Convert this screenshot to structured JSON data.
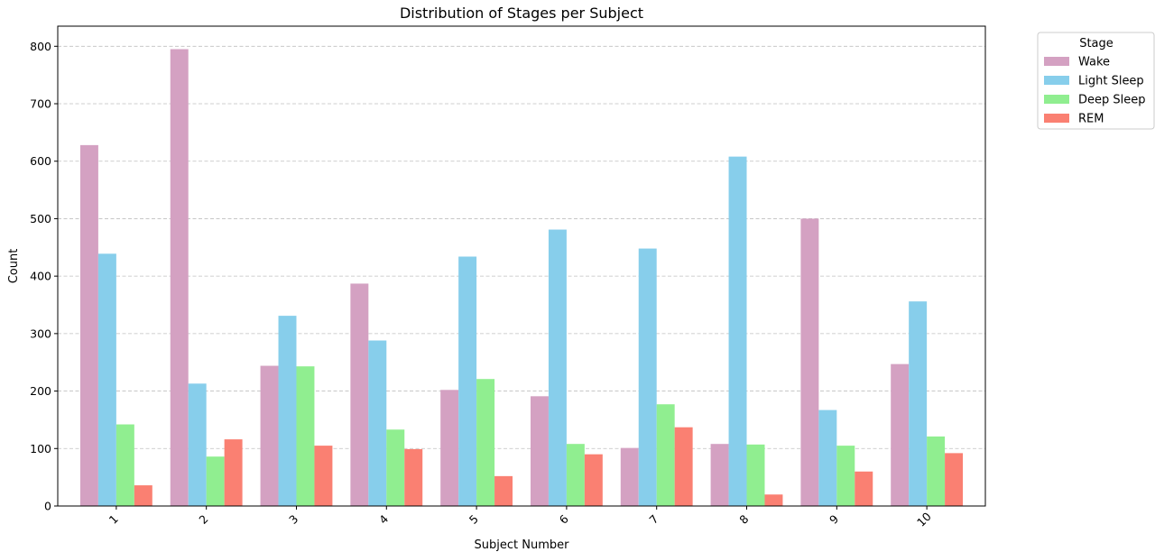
{
  "chart_data": {
    "type": "bar",
    "title": "Distribution of Stages per Subject",
    "xlabel": "Subject Number",
    "ylabel": "Count",
    "categories": [
      "1",
      "2",
      "3",
      "4",
      "5",
      "6",
      "7",
      "8",
      "9",
      "10"
    ],
    "ylim": [
      0,
      835
    ],
    "yticks": [
      0,
      100,
      200,
      300,
      400,
      500,
      600,
      700,
      800
    ],
    "grid": "y-dashed",
    "legend": {
      "title": "Stage",
      "placement": "outside-top-right"
    },
    "series": [
      {
        "name": "Wake",
        "color": "#d4a1c2",
        "values": [
          628,
          795,
          244,
          387,
          202,
          191,
          101,
          108,
          500,
          247
        ]
      },
      {
        "name": "Light Sleep",
        "color": "#87ceeb",
        "values": [
          439,
          213,
          331,
          288,
          434,
          481,
          448,
          608,
          167,
          356
        ]
      },
      {
        "name": "Deep Sleep",
        "color": "#90ee90",
        "values": [
          142,
          86,
          243,
          133,
          221,
          108,
          177,
          107,
          105,
          121
        ]
      },
      {
        "name": "REM",
        "color": "#fa8072",
        "values": [
          36,
          116,
          105,
          99,
          52,
          90,
          137,
          20,
          60,
          92
        ]
      }
    ]
  }
}
